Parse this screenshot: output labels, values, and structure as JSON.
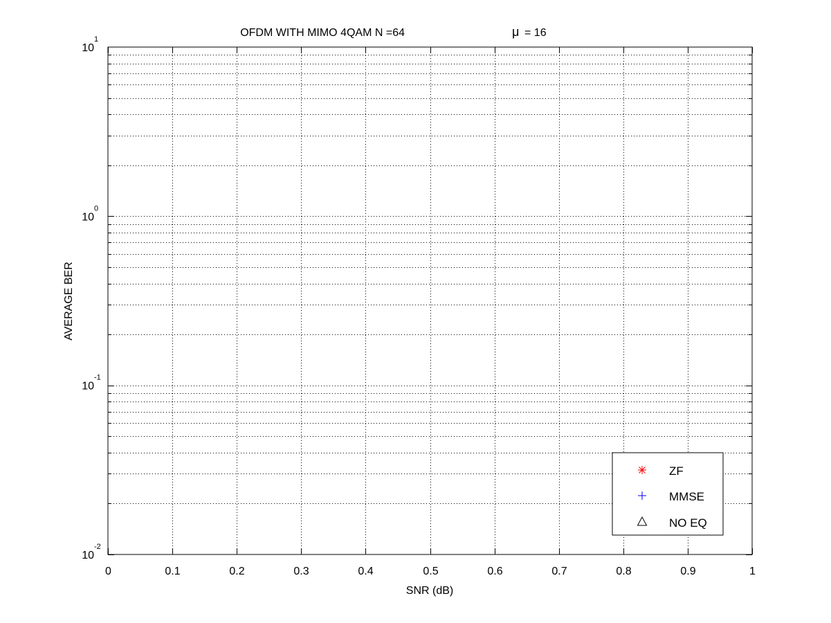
{
  "chart_data": {
    "type": "scatter",
    "title_main": "OFDM WITH MIMO 4QAM N =64",
    "title_mu_symbol": "μ",
    "title_mu_value": "= 16",
    "xlabel": "SNR (dB)",
    "ylabel": "AVERAGE BER",
    "xlim": [
      0,
      1
    ],
    "ylim": [
      0.01,
      10
    ],
    "yscale": "log",
    "grid": true,
    "legend_placement": "bottom-right",
    "x_ticks": [
      "0",
      "0.1",
      "0.2",
      "0.3",
      "0.4",
      "0.5",
      "0.6",
      "0.7",
      "0.8",
      "0.9",
      "1"
    ],
    "y_ticks": [
      {
        "base": "10",
        "exp": "1",
        "value": 10
      },
      {
        "base": "10",
        "exp": "0",
        "value": 1
      },
      {
        "base": "10",
        "exp": "-1",
        "value": 0.1
      },
      {
        "base": "10",
        "exp": "-2",
        "value": 0.01
      }
    ],
    "series": [
      {
        "name": "ZF",
        "marker": "asterisk",
        "color": "#ff0000",
        "values": []
      },
      {
        "name": "MMSE",
        "marker": "plus",
        "color": "#0000ff",
        "values": []
      },
      {
        "name": "NO EQ",
        "marker": "triangle",
        "color": "#000000",
        "values": []
      }
    ]
  }
}
